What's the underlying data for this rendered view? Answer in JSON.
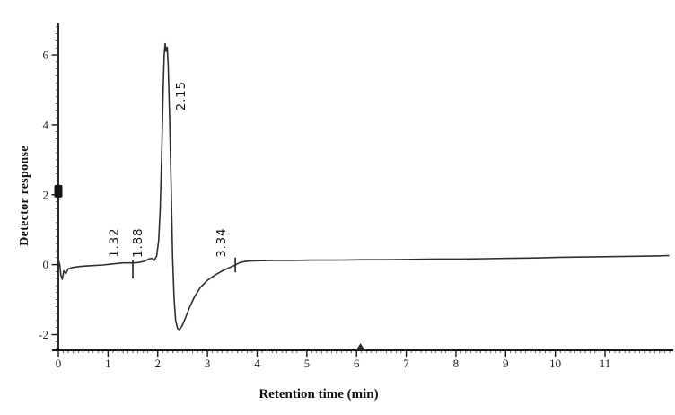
{
  "figure": {
    "background": "#ffffff"
  },
  "chart_data": {
    "type": "line",
    "title": "",
    "xlabel": "Retention time (min)",
    "ylabel": "Detector response",
    "xlim": [
      0,
      12.3
    ],
    "ylim": [
      -2.45,
      6.9
    ],
    "grid": false,
    "legend": null,
    "axis_color": "#161616",
    "line_color": "#2f2f2f",
    "x_major_ticks": [
      0,
      1,
      2,
      3,
      4,
      5,
      6,
      7,
      8,
      9,
      10,
      11
    ],
    "x_minor_step": 0.1,
    "y_major_ticks": [
      -2,
      0,
      2,
      4,
      6
    ],
    "y_minor_step": 0.2,
    "series": [
      {
        "name": "detector-trace",
        "points": [
          [
            0.0,
            0.15
          ],
          [
            0.03,
            -0.02
          ],
          [
            0.05,
            -0.3
          ],
          [
            0.08,
            -0.42
          ],
          [
            0.11,
            -0.18
          ],
          [
            0.15,
            -0.25
          ],
          [
            0.2,
            -0.12
          ],
          [
            0.3,
            -0.08
          ],
          [
            0.45,
            -0.05
          ],
          [
            0.65,
            -0.03
          ],
          [
            0.9,
            -0.01
          ],
          [
            1.1,
            0.02
          ],
          [
            1.3,
            0.05
          ],
          [
            1.5,
            0.05
          ],
          [
            1.6,
            0.06
          ],
          [
            1.72,
            0.09
          ],
          [
            1.82,
            0.16
          ],
          [
            1.88,
            0.18
          ],
          [
            1.93,
            0.12
          ],
          [
            1.98,
            0.25
          ],
          [
            2.02,
            0.7
          ],
          [
            2.05,
            1.6
          ],
          [
            2.08,
            3.2
          ],
          [
            2.11,
            5.0
          ],
          [
            2.13,
            6.0
          ],
          [
            2.15,
            6.32
          ],
          [
            2.17,
            6.1
          ],
          [
            2.19,
            6.22
          ],
          [
            2.21,
            5.7
          ],
          [
            2.24,
            4.2
          ],
          [
            2.27,
            2.2
          ],
          [
            2.3,
            0.2
          ],
          [
            2.33,
            -1.0
          ],
          [
            2.36,
            -1.6
          ],
          [
            2.4,
            -1.83
          ],
          [
            2.44,
            -1.86
          ],
          [
            2.49,
            -1.75
          ],
          [
            2.56,
            -1.52
          ],
          [
            2.64,
            -1.22
          ],
          [
            2.74,
            -0.92
          ],
          [
            2.86,
            -0.65
          ],
          [
            3.0,
            -0.45
          ],
          [
            3.15,
            -0.3
          ],
          [
            3.3,
            -0.18
          ],
          [
            3.45,
            -0.08
          ],
          [
            3.55,
            -0.02
          ],
          [
            3.65,
            0.06
          ],
          [
            3.8,
            0.1
          ],
          [
            4.0,
            0.11
          ],
          [
            4.3,
            0.12
          ],
          [
            4.7,
            0.12
          ],
          [
            5.1,
            0.13
          ],
          [
            5.6,
            0.13
          ],
          [
            6.1,
            0.14
          ],
          [
            6.6,
            0.14
          ],
          [
            7.1,
            0.15
          ],
          [
            7.6,
            0.16
          ],
          [
            8.1,
            0.16
          ],
          [
            8.6,
            0.17
          ],
          [
            9.1,
            0.18
          ],
          [
            9.6,
            0.19
          ],
          [
            10.1,
            0.21
          ],
          [
            10.6,
            0.22
          ],
          [
            11.1,
            0.23
          ],
          [
            11.6,
            0.24
          ],
          [
            12.05,
            0.25
          ],
          [
            12.28,
            0.26
          ]
        ]
      }
    ],
    "peak_annotations": [
      {
        "label": "1.32",
        "x": 1.2,
        "y": 0.2
      },
      {
        "label": "1.88",
        "x": 1.68,
        "y": 0.2
      },
      {
        "label": "2.15",
        "x": 2.55,
        "y": 4.4
      },
      {
        "label": "3.34",
        "x": 3.36,
        "y": 0.2
      }
    ],
    "integration_marks": [
      {
        "x": 1.5,
        "y1": -0.4,
        "y2": 0.12
      },
      {
        "x": 3.56,
        "y1": -0.22,
        "y2": 0.2
      }
    ],
    "artifacts": [
      {
        "type": "blob",
        "x": 0,
        "y": 2.1
      },
      {
        "type": "triangle",
        "x": 6.08,
        "y": -2.45
      }
    ]
  }
}
